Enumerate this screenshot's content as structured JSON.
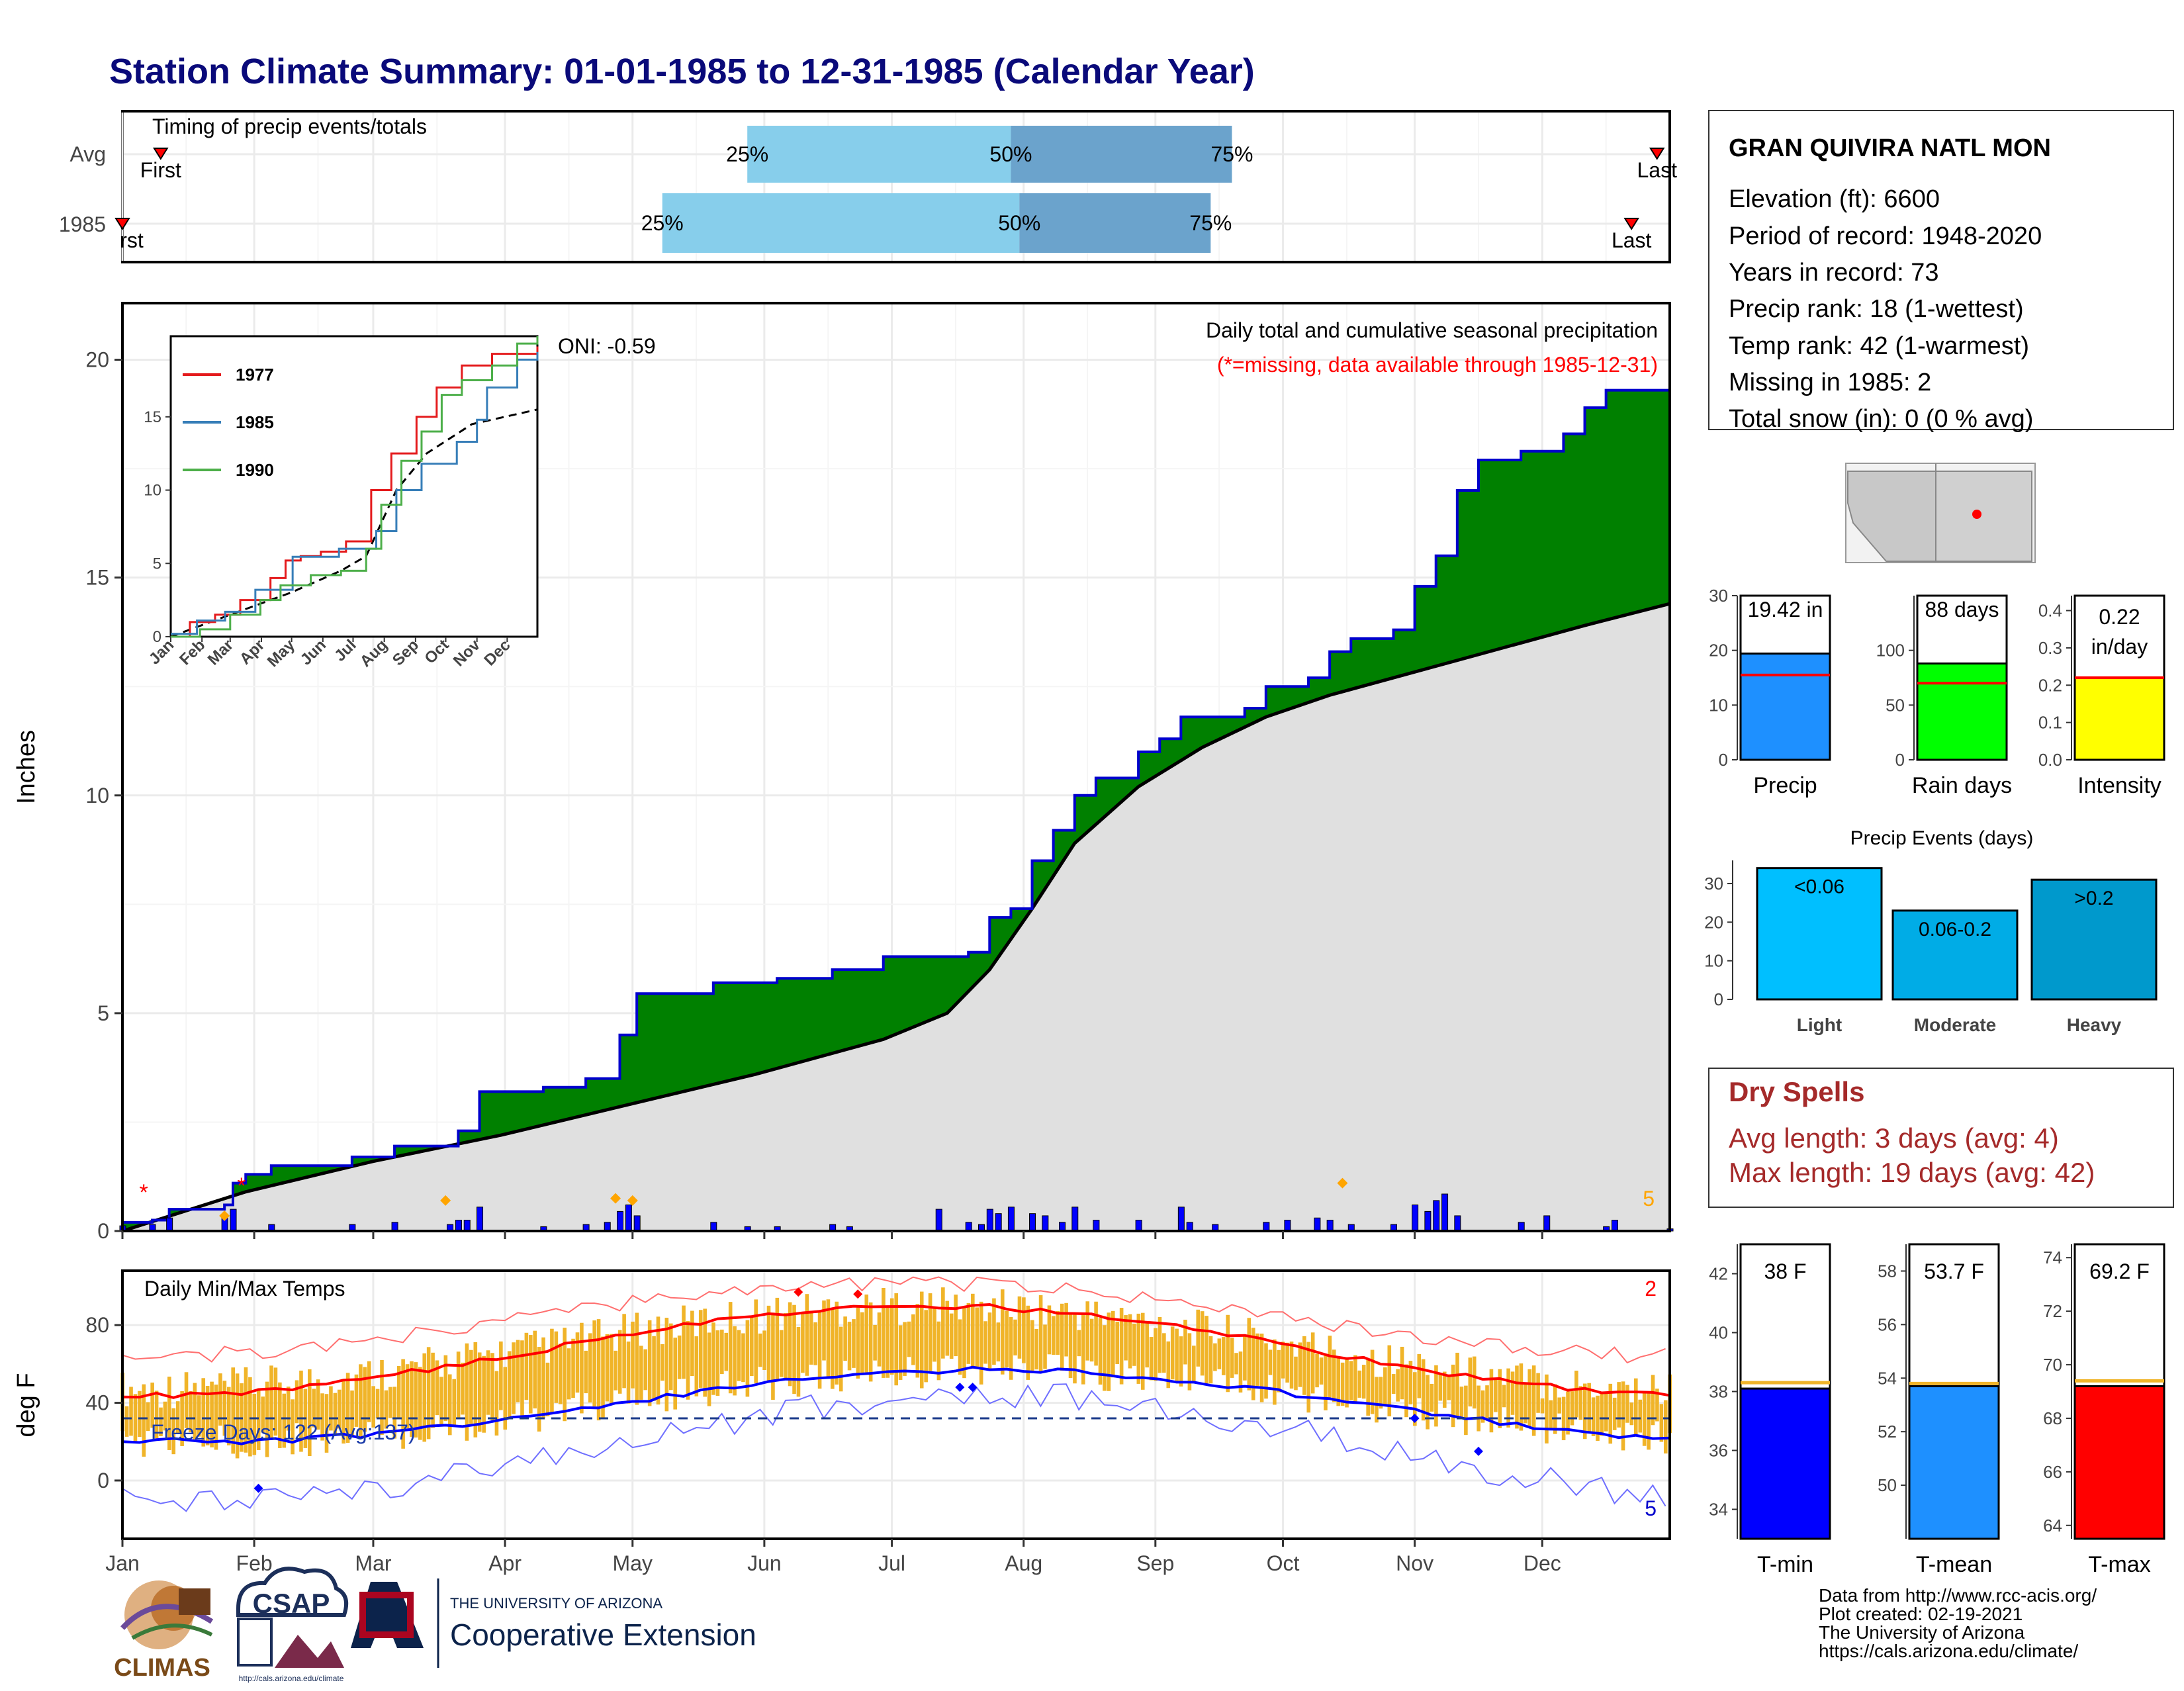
{
  "title": "Station Climate Summary: 01-01-1985 to 12-31-1985 (Calendar Year)",
  "timing": {
    "label": "Timing of precip events/totals",
    "rows": [
      {
        "name": "Avg",
        "first_day": 10,
        "last_day": 362,
        "q25_day": 148,
        "q50_day": 210,
        "q75_day": 262
      },
      {
        "name": "1985",
        "first_day": 1,
        "last_day": 356,
        "q25_day": 128,
        "q50_day": 212,
        "q75_day": 257
      }
    ],
    "first_label": "First",
    "first_label_cut": "rst",
    "last_label": "Last",
    "pct_labels": [
      "25%",
      "50%",
      "75%"
    ]
  },
  "precip": {
    "title": "Daily total and cumulative seasonal precipitation",
    "missing_note": "(*=missing, data available through 1985-12-31)",
    "oni": "ONI: -0.59",
    "ylabel": "Inches",
    "yticks": [
      0,
      5,
      10,
      15,
      20
    ],
    "count_label": "5",
    "cumulative_1985": [
      [
        1,
        0.2
      ],
      [
        8,
        0.25
      ],
      [
        12,
        0.5
      ],
      [
        25,
        0.6
      ],
      [
        27,
        1.1
      ],
      [
        30,
        1.3
      ],
      [
        36,
        1.5
      ],
      [
        55,
        1.7
      ],
      [
        65,
        1.95
      ],
      [
        80,
        2.3
      ],
      [
        85,
        3.2
      ],
      [
        100,
        3.3
      ],
      [
        110,
        3.5
      ],
      [
        118,
        4.5
      ],
      [
        122,
        5.45
      ],
      [
        140,
        5.7
      ],
      [
        155,
        5.8
      ],
      [
        168,
        6.0
      ],
      [
        180,
        6.3
      ],
      [
        200,
        6.4
      ],
      [
        205,
        7.2
      ],
      [
        210,
        7.4
      ],
      [
        215,
        8.5
      ],
      [
        220,
        9.2
      ],
      [
        225,
        10.0
      ],
      [
        230,
        10.4
      ],
      [
        240,
        11.0
      ],
      [
        245,
        11.3
      ],
      [
        250,
        11.8
      ],
      [
        265,
        12.0
      ],
      [
        270,
        12.5
      ],
      [
        280,
        12.7
      ],
      [
        285,
        13.3
      ],
      [
        290,
        13.6
      ],
      [
        300,
        13.8
      ],
      [
        305,
        14.8
      ],
      [
        310,
        15.5
      ],
      [
        315,
        17.0
      ],
      [
        320,
        17.7
      ],
      [
        330,
        17.9
      ],
      [
        340,
        18.3
      ],
      [
        345,
        18.9
      ],
      [
        350,
        19.3
      ],
      [
        365,
        19.42
      ]
    ],
    "avg_cumulative": [
      [
        1,
        0
      ],
      [
        30,
        0.9
      ],
      [
        60,
        1.6
      ],
      [
        90,
        2.2
      ],
      [
        120,
        2.9
      ],
      [
        150,
        3.6
      ],
      [
        180,
        4.4
      ],
      [
        195,
        5.0
      ],
      [
        205,
        6.0
      ],
      [
        215,
        7.4
      ],
      [
        225,
        8.9
      ],
      [
        240,
        10.2
      ],
      [
        255,
        11.1
      ],
      [
        270,
        11.8
      ],
      [
        285,
        12.3
      ],
      [
        300,
        12.7
      ],
      [
        315,
        13.1
      ],
      [
        330,
        13.5
      ],
      [
        345,
        13.9
      ],
      [
        365,
        14.4
      ]
    ],
    "daily_bars": [
      [
        1,
        0.12
      ],
      [
        8,
        0.15
      ],
      [
        12,
        0.3
      ],
      [
        25,
        0.35
      ],
      [
        27,
        0.5
      ],
      [
        36,
        0.15
      ],
      [
        55,
        0.15
      ],
      [
        65,
        0.2
      ],
      [
        78,
        0.15
      ],
      [
        80,
        0.25
      ],
      [
        82,
        0.25
      ],
      [
        85,
        0.55
      ],
      [
        100,
        0.1
      ],
      [
        110,
        0.15
      ],
      [
        115,
        0.2
      ],
      [
        118,
        0.45
      ],
      [
        120,
        0.6
      ],
      [
        122,
        0.35
      ],
      [
        140,
        0.2
      ],
      [
        148,
        0.1
      ],
      [
        155,
        0.1
      ],
      [
        168,
        0.15
      ],
      [
        172,
        0.1
      ],
      [
        193,
        0.5
      ],
      [
        200,
        0.2
      ],
      [
        203,
        0.15
      ],
      [
        205,
        0.5
      ],
      [
        207,
        0.4
      ],
      [
        210,
        0.55
      ],
      [
        215,
        0.4
      ],
      [
        218,
        0.35
      ],
      [
        222,
        0.2
      ],
      [
        225,
        0.55
      ],
      [
        230,
        0.25
      ],
      [
        240,
        0.25
      ],
      [
        250,
        0.55
      ],
      [
        252,
        0.2
      ],
      [
        258,
        0.15
      ],
      [
        270,
        0.2
      ],
      [
        275,
        0.25
      ],
      [
        282,
        0.3
      ],
      [
        285,
        0.25
      ],
      [
        290,
        0.15
      ],
      [
        300,
        0.15
      ],
      [
        305,
        0.6
      ],
      [
        308,
        0.45
      ],
      [
        310,
        0.7
      ],
      [
        312,
        0.85
      ],
      [
        315,
        0.35
      ],
      [
        330,
        0.2
      ],
      [
        336,
        0.35
      ],
      [
        350,
        0.1
      ],
      [
        352,
        0.25
      ],
      [
        365,
        0.05
      ]
    ],
    "record_markers": [
      [
        25,
        0.35
      ],
      [
        77,
        0.7
      ],
      [
        117,
        0.75
      ],
      [
        121,
        0.7
      ],
      [
        288,
        1.1
      ]
    ],
    "missing_markers": [
      [
        6,
        0.9
      ],
      [
        29,
        1.05
      ]
    ]
  },
  "inset": {
    "yticks": [
      0,
      5,
      10,
      15
    ],
    "xticks": [
      "Jan",
      "Feb",
      "Mar",
      "Apr",
      "May",
      "Jun",
      "Jul",
      "Aug",
      "Sep",
      "Oct",
      "Nov",
      "Dec"
    ],
    "series": [
      {
        "name": "1977",
        "color": "#e41a1c",
        "points": [
          [
            1,
            0
          ],
          [
            20,
            1
          ],
          [
            45,
            1.5
          ],
          [
            70,
            2.5
          ],
          [
            100,
            4
          ],
          [
            115,
            5.2
          ],
          [
            130,
            5.5
          ],
          [
            150,
            5.8
          ],
          [
            175,
            6.5
          ],
          [
            200,
            10
          ],
          [
            220,
            12.5
          ],
          [
            245,
            15
          ],
          [
            265,
            17
          ],
          [
            290,
            18.5
          ],
          [
            320,
            19.3
          ],
          [
            365,
            19.8
          ]
        ]
      },
      {
        "name": "1985",
        "color": "#377eb8",
        "points": [
          [
            1,
            0.2
          ],
          [
            27,
            1.1
          ],
          [
            55,
            1.7
          ],
          [
            85,
            3.2
          ],
          [
            122,
            5.45
          ],
          [
            168,
            6.0
          ],
          [
            205,
            7.2
          ],
          [
            225,
            10.0
          ],
          [
            250,
            11.8
          ],
          [
            285,
            13.3
          ],
          [
            305,
            14.8
          ],
          [
            315,
            17.0
          ],
          [
            345,
            18.9
          ],
          [
            365,
            19.42
          ]
        ]
      },
      {
        "name": "1990",
        "color": "#4daf4a",
        "points": [
          [
            1,
            0
          ],
          [
            30,
            0.5
          ],
          [
            60,
            1.5
          ],
          [
            90,
            2.5
          ],
          [
            110,
            3.5
          ],
          [
            140,
            4.2
          ],
          [
            170,
            4.5
          ],
          [
            195,
            6
          ],
          [
            210,
            9
          ],
          [
            230,
            12
          ],
          [
            250,
            14
          ],
          [
            270,
            16.5
          ],
          [
            290,
            17.5
          ],
          [
            320,
            18.5
          ],
          [
            345,
            20
          ],
          [
            365,
            20.5
          ]
        ]
      }
    ],
    "avg_points": [
      [
        1,
        0
      ],
      [
        60,
        1.5
      ],
      [
        120,
        3
      ],
      [
        170,
        4.5
      ],
      [
        195,
        5.5
      ],
      [
        225,
        10
      ],
      [
        255,
        12.5
      ],
      [
        300,
        14.5
      ],
      [
        365,
        15.5
      ]
    ]
  },
  "temps": {
    "title": "Daily Min/Max Temps",
    "freeze_label": "Freeze Days: 122 (Avg:137)",
    "ylabel": "deg F",
    "yticks": [
      0,
      40,
      80
    ],
    "hot_count": "2",
    "cold_count": "5",
    "months": [
      "Jan",
      "Feb",
      "Mar",
      "Apr",
      "May",
      "Jun",
      "Jul",
      "Aug",
      "Sep",
      "Oct",
      "Nov",
      "Dec"
    ]
  },
  "station": {
    "name": "GRAN QUIVIRA NATL MON",
    "lines": [
      "Elevation (ft): 6600",
      "Period of record: 1948-2020",
      "Years in record: 73",
      "Precip rank: 18 (1-wettest)",
      "Temp rank: 42 (1-warmest)",
      "Missing in 1985: 2",
      "Total snow (in): 0 (0 % avg)"
    ]
  },
  "mini_bars": [
    {
      "label": "Precip",
      "value_label": "19.42 in",
      "value": 19.42,
      "avg": 15.5,
      "ymax": 30,
      "yticks": [
        0,
        10,
        20,
        30
      ],
      "color": "#1e90ff"
    },
    {
      "label": "Rain days",
      "value_label": "88 days",
      "value": 88,
      "avg": 70,
      "ymax": 150,
      "yticks": [
        0,
        50,
        100
      ],
      "color": "#00ff00"
    },
    {
      "label": "Intensity",
      "value_label": "0.22 in/day",
      "value_line1": "0.22",
      "value_line2": "in/day",
      "value": 0.22,
      "avg": 0.22,
      "ymax": 0.44,
      "yticks": [
        0.0,
        0.1,
        0.2,
        0.3,
        0.4
      ],
      "color": "#ffff00"
    }
  ],
  "events": {
    "title": "Precip Events (days)",
    "categories": [
      "Light",
      "Moderate",
      "Heavy"
    ],
    "values": [
      34,
      23,
      31
    ],
    "labels": [
      "<0.06",
      "0.06-0.2",
      ">0.2"
    ],
    "yticks": [
      0,
      10,
      20,
      30
    ],
    "colors": [
      "#00bfff",
      "#00ace6",
      "#0099cc"
    ]
  },
  "dry": {
    "title": "Dry Spells",
    "avg": "Avg length: 3 days (avg: 4)",
    "max": "Max length: 19 days (avg: 42)"
  },
  "temp_bars": [
    {
      "label": "T-min",
      "value_label": "38 F",
      "value": 38.1,
      "avg": 38.3,
      "ymin": 33,
      "ymax": 43,
      "yticks": [
        34,
        36,
        38,
        40,
        42
      ],
      "color": "#0000ff"
    },
    {
      "label": "T-mean",
      "value_label": "53.7 F",
      "value": 53.7,
      "avg": 53.8,
      "ymin": 48,
      "ymax": 59,
      "yticks": [
        50,
        52,
        54,
        56,
        58
      ],
      "color": "#1e90ff"
    },
    {
      "label": "T-max",
      "value_label": "69.2 F",
      "value": 69.2,
      "avg": 69.4,
      "ymin": 63.5,
      "ymax": 74.5,
      "yticks": [
        64,
        66,
        68,
        70,
        72,
        74
      ],
      "color": "#ff0000"
    }
  ],
  "footer": {
    "lines": [
      "Data from http://www.rcc-acis.org/",
      "Plot created: 02-19-2021",
      "The University of Arizona",
      "https://cals.arizona.edu/climate/"
    ],
    "climas": "CLIMAS",
    "csap": "CSAP",
    "csap_url": "http://cals.arizona.edu/climate",
    "ua_line1": "THE UNIVERSITY OF ARIZONA",
    "ua_line2": "Cooperative Extension"
  }
}
